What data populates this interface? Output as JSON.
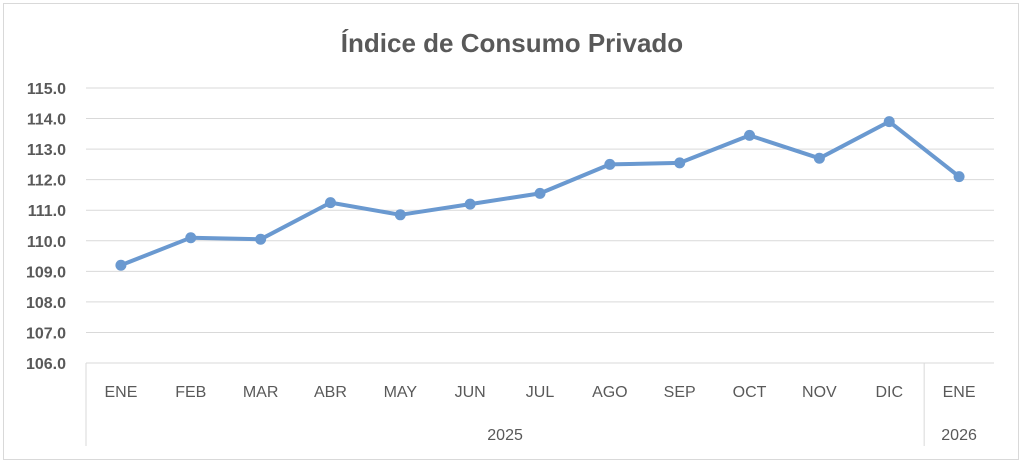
{
  "chart_data": {
    "type": "line",
    "title": "Índice de Consumo Privado",
    "xlabel": "",
    "ylabel": "",
    "ylim": [
      106.0,
      115.0
    ],
    "yticks": [
      "106.0",
      "107.0",
      "108.0",
      "109.0",
      "110.0",
      "111.0",
      "112.0",
      "113.0",
      "114.0",
      "115.0"
    ],
    "categories": [
      "ENE",
      "FEB",
      "MAR",
      "ABR",
      "MAY",
      "JUN",
      "JUL",
      "AGO",
      "SEP",
      "OCT",
      "NOV",
      "DIC",
      "ENE"
    ],
    "groups": [
      {
        "label": "2025",
        "count": 12
      },
      {
        "label": "2026",
        "count": 1
      }
    ],
    "series": [
      {
        "values": [
          109.2,
          110.1,
          110.05,
          111.25,
          110.85,
          111.2,
          111.55,
          112.5,
          112.55,
          113.45,
          112.7,
          113.9,
          112.1
        ],
        "color": "#6a99d0"
      }
    ],
    "grid": true,
    "legend": "none"
  }
}
